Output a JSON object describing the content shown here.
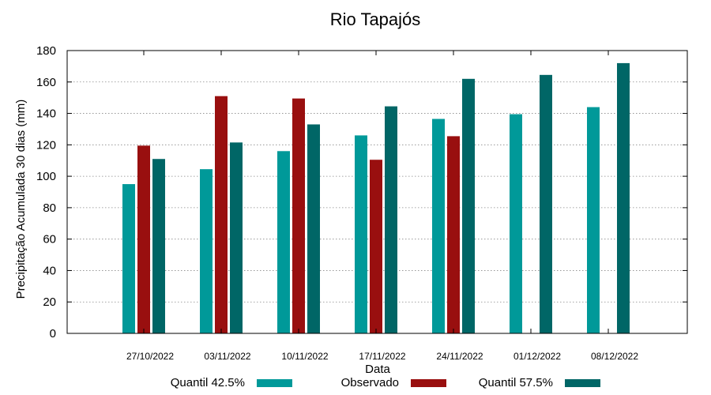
{
  "chart_data": {
    "type": "bar",
    "title": "Rio Tapajós",
    "xlabel": "Data",
    "ylabel": "Precipitação Acumulada 30 dias (mm)",
    "ylim": [
      0,
      180
    ],
    "yticks": [
      0,
      20,
      40,
      60,
      80,
      100,
      120,
      140,
      160,
      180
    ],
    "grid": true,
    "legend_position": "bottom",
    "categories": [
      "27/10/2022",
      "03/11/2022",
      "10/11/2022",
      "17/11/2022",
      "24/11/2022",
      "01/12/2022",
      "08/12/2022"
    ],
    "series": [
      {
        "name": "Quantil 42.5%",
        "color": "#009999",
        "values": [
          95,
          104.5,
          116,
          126,
          136.5,
          139.5,
          144
        ]
      },
      {
        "name": "Observado",
        "color": "#990f0f",
        "values": [
          119.5,
          151,
          149.5,
          110.5,
          125.5,
          null,
          null
        ]
      },
      {
        "name": "Quantil 57.5%",
        "color": "#006666",
        "values": [
          111,
          121.5,
          133,
          144.5,
          162,
          164.5,
          172
        ]
      }
    ]
  }
}
